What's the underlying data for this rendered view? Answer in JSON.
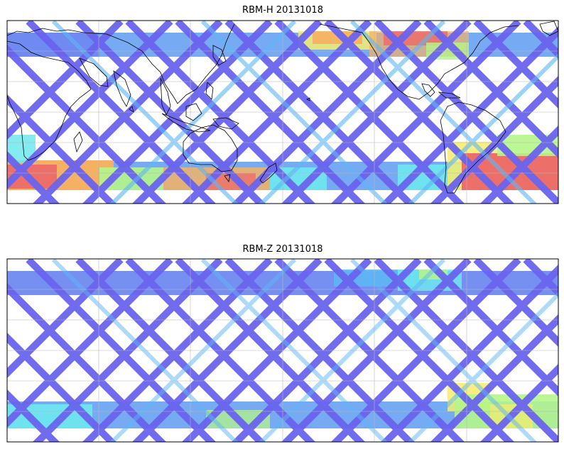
{
  "panels": [
    {
      "title": "RBM-H 20131018",
      "palette": [
        "#6a64ee",
        "#6f8af0",
        "#5fb6f5",
        "#6ee8ee",
        "#b5f58a",
        "#f6ec6e",
        "#f6b063",
        "#ec6f6a"
      ],
      "hot_regions": [
        "south-indian-ocean",
        "south-pacific-band",
        "south-atlantic",
        "north-atlantic-top"
      ]
    },
    {
      "title": "RBM-Z 20131018",
      "palette": [
        "#6a64ee",
        "#6f8af0",
        "#5fb6f5",
        "#6ee8ee",
        "#b5f58a",
        "#f6ec6e",
        "#f6b063",
        "#ec6f6a"
      ],
      "hot_regions": [
        "south-atlantic-mild",
        "southern-band-mild"
      ]
    }
  ]
}
